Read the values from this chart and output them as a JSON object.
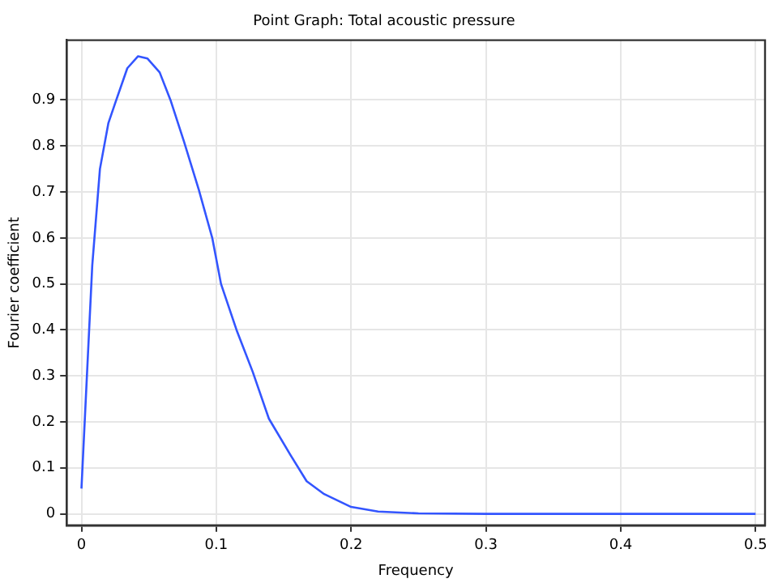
{
  "chart_data": {
    "type": "line",
    "title": "Point Graph: Total acoustic pressure",
    "xlabel": "Frequency",
    "ylabel": "Fourier coefficient",
    "x": [
      0,
      0.008,
      0.0137,
      0.02,
      0.025,
      0.034,
      0.042,
      0.049,
      0.058,
      0.066,
      0.076,
      0.087,
      0.097,
      0.1035,
      0.115,
      0.127,
      0.139,
      0.155,
      0.167,
      0.18,
      0.2,
      0.22,
      0.25,
      0.3,
      0.4,
      0.5
    ],
    "series": [
      {
        "color": "#3355ff",
        "values": [
          0.055,
          0.54,
          0.75,
          0.85,
          0.893,
          0.969,
          0.995,
          0.99,
          0.96,
          0.9,
          0.81,
          0.705,
          0.6,
          0.5,
          0.4,
          0.309,
          0.207,
          0.128,
          0.071,
          0.043,
          0.015,
          0.005,
          0.001,
          0,
          0,
          0
        ]
      }
    ],
    "xlim": [
      -0.011,
      0.507
    ],
    "ylim": [
      -0.025,
      1.03
    ],
    "xticks": [
      0,
      0.1,
      0.2,
      0.3,
      0.4,
      0.5
    ],
    "yticks": [
      0,
      0.1,
      0.2,
      0.3,
      0.4,
      0.5,
      0.6,
      0.7,
      0.8,
      0.9
    ],
    "grid": true,
    "legend": false,
    "marker": "none",
    "line_style": "solid"
  }
}
